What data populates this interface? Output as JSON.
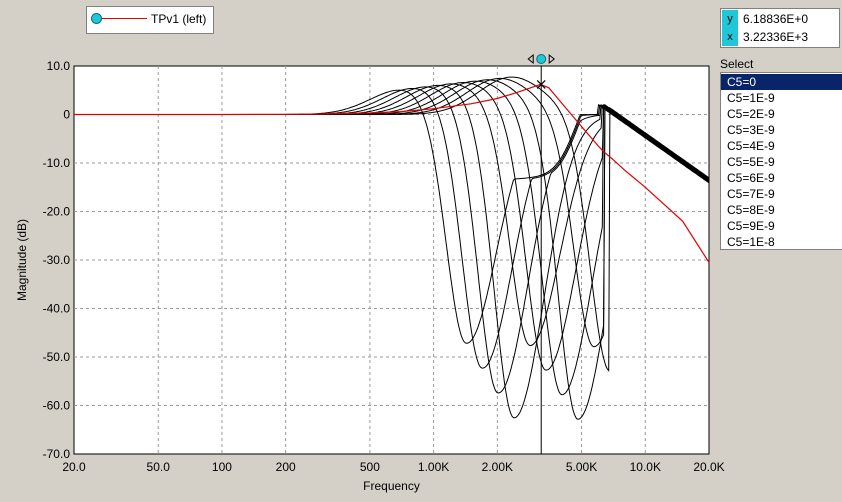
{
  "legend": {
    "label": "TPv1 (left)"
  },
  "cursor_readout": {
    "y_key": "y",
    "y_value": "6.18836E+0",
    "x_key": "x",
    "x_value": "3.22336E+3"
  },
  "select_panel": {
    "title": "Select",
    "items": [
      "C5=0",
      "C5=1E-9",
      "C5=2E-9",
      "C5=3E-9",
      "C5=4E-9",
      "C5=5E-9",
      "C5=6E-9",
      "C5=7E-9",
      "C5=8E-9",
      "C5=9E-9",
      "C5=1E-8"
    ],
    "selected_index": 0
  },
  "colors": {
    "selected_curve": "#e00000",
    "curves": "#000000",
    "cursor_marker": "#1fc7d9",
    "list_selection": "#0a246a",
    "background": "#d4d0c8"
  },
  "chart_data": {
    "type": "line",
    "title": "",
    "xlabel": "Frequency",
    "ylabel": "Magnitude  (dB)",
    "x_scale": "log",
    "xlim": [
      20,
      20000
    ],
    "ylim": [
      -70,
      10
    ],
    "x_ticks": [
      20,
      50,
      100,
      200,
      500,
      1000,
      2000,
      5000,
      10000,
      20000
    ],
    "x_tick_labels": [
      "20.0",
      "50.0",
      "100",
      "200",
      "500",
      "1.00K",
      "2.00K",
      "5.00K",
      "10.0K",
      "20.0K"
    ],
    "y_ticks": [
      10,
      0,
      -10,
      -20,
      -30,
      -40,
      -50,
      -60,
      -70
    ],
    "y_tick_labels": [
      "10.0",
      "0",
      "-10.0",
      "-20.0",
      "-30.0",
      "-40.0",
      "-50.0",
      "-60.0",
      "-70.0"
    ],
    "grid": true,
    "cursor": {
      "x": 3223.36,
      "y": 6.18836
    },
    "x": [
      20,
      100,
      200,
      300,
      500,
      700,
      1000,
      1500,
      2000,
      2500,
      3000,
      3200,
      3500,
      4000,
      5000,
      6000,
      6300,
      7000,
      8000,
      10000,
      15000,
      20000
    ],
    "series": [
      {
        "name": "C5=0",
        "values": [
          0,
          0,
          0.05,
          0.1,
          0.3,
          0.6,
          1.2,
          2.2,
          3.3,
          4.6,
          5.8,
          6.2,
          5.5,
          2.5,
          -2.5,
          -6.5,
          -7.5,
          -9.2,
          -11.5,
          -15,
          -22,
          -30.5
        ]
      }
    ]
  }
}
